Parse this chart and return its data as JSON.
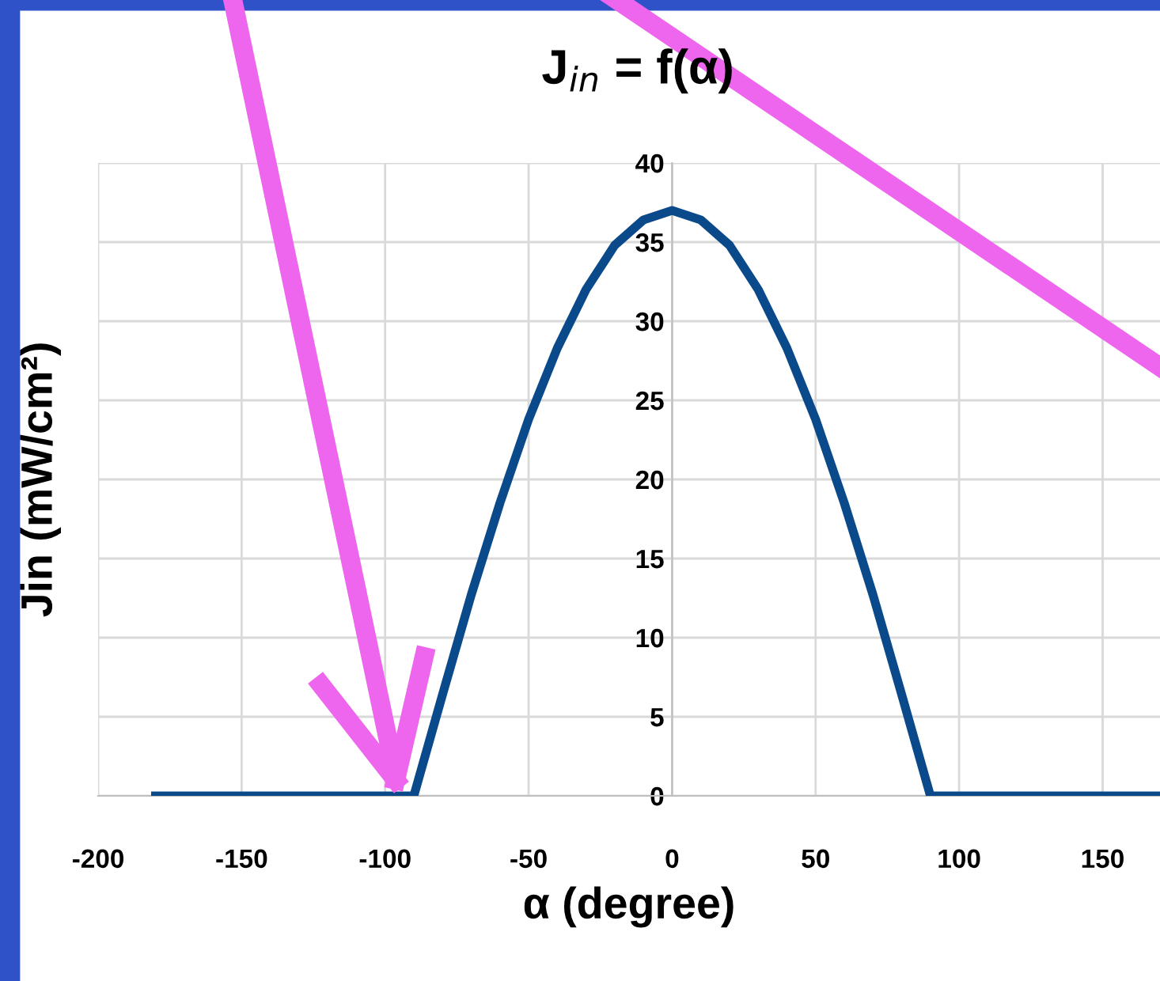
{
  "chart_data": {
    "type": "line",
    "title": "J$_{in}$ = f(α)",
    "xlabel": "α (degree)",
    "ylabel": "Jin (mW/cm²)",
    "x": [
      -180,
      -90,
      -80,
      -70,
      -60,
      -50,
      -40,
      -30,
      -20,
      -10,
      0,
      10,
      20,
      30,
      40,
      50,
      60,
      70,
      80,
      90,
      170
    ],
    "values": [
      0,
      0,
      6.4,
      12.7,
      18.5,
      23.8,
      28.3,
      32,
      34.8,
      36.4,
      37,
      36.4,
      34.8,
      32,
      28.3,
      23.8,
      18.5,
      12.7,
      6.4,
      0,
      0
    ],
    "color": "#0b4a8a",
    "line_style": "solid",
    "xlim": [
      -200,
      170
    ],
    "ylim": [
      0,
      40
    ],
    "xticks": [
      -200,
      -150,
      -100,
      -50,
      0,
      50,
      100,
      150
    ],
    "yticks": [
      0,
      5,
      10,
      15,
      20,
      25,
      30,
      35,
      40
    ],
    "grid": true
  }
}
